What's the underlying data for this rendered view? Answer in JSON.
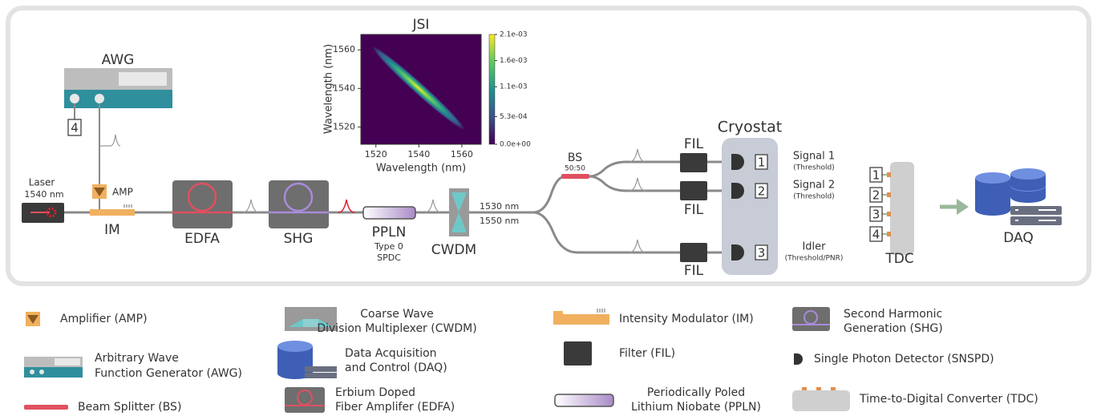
{
  "jsi": {
    "title": "JSI",
    "xlabel": "Wavelength (nm)",
    "ylabel": "Wavelength (nm)",
    "xlim": [
      1513,
      1569
    ],
    "xticks": [
      1520,
      1540,
      1560
    ],
    "ylim": [
      1511,
      1568
    ],
    "yticks": [
      1520,
      1540,
      1560
    ],
    "colorbar": {
      "lim": [
        0,
        0.0021
      ],
      "ticks": [
        {
          "value": 0,
          "label": "0.0e+00"
        },
        {
          "value": 0.00053,
          "label": "5.3e-04"
        },
        {
          "value": 0.0011,
          "label": "1.1e-03"
        },
        {
          "value": 0.0016,
          "label": "1.6e-03"
        },
        {
          "value": 0.0021,
          "label": "2.1e-03"
        }
      ]
    }
  },
  "setup": {
    "awg": "AWG",
    "awg_channel": "4",
    "amp": "AMP",
    "laser": "Laser",
    "laser_wavelength": "1540 nm",
    "im": "IM",
    "edfa": "EDFA",
    "shg": "SHG",
    "ppln": "PPLN",
    "ppln_type": "Type 0",
    "ppln_process": "SPDC",
    "cwdm": "CWDM",
    "cwdm_out1": "1530 nm",
    "cwdm_out2": "1550 nm",
    "bs": "BS",
    "bs_ratio": "50:50",
    "fil": [
      "FIL",
      "FIL",
      "FIL"
    ],
    "cryostat": "Cryostat",
    "detectors": [
      {
        "channel": "1",
        "name": "Signal 1",
        "mode": "(Threshold)"
      },
      {
        "channel": "2",
        "name": "Signal 2",
        "mode": "(Threshold)"
      },
      {
        "channel": "3",
        "name": "Idler",
        "mode": "(Threshold/PNR)"
      }
    ],
    "tdc_inputs": [
      "1",
      "2",
      "3",
      "4"
    ],
    "tdc": "TDC",
    "daq": "DAQ"
  },
  "legend": {
    "amp": [
      "Amplifier (AMP)"
    ],
    "awg": [
      "Arbitrary Wave",
      "Function Generator (AWG)"
    ],
    "bs": [
      "Beam Splitter (BS)"
    ],
    "cwdm": [
      "Coarse Wave",
      "Division Multiplexer (CWDM)"
    ],
    "daq": [
      "Data Acquisition",
      "and Control (DAQ)"
    ],
    "edfa": [
      "Erbium Doped",
      "Fiber Amplifer (EDFA)"
    ],
    "im": [
      "Intensity Modulator (IM)"
    ],
    "fil": [
      "Filter (FIL)"
    ],
    "ppln": [
      "Periodically Poled",
      "Lithium Niobate (PPLN)"
    ],
    "shg": [
      "Second Harmonic",
      "Generation (SHG)"
    ],
    "snspd": [
      "Single Photon Detector (SNSPD)"
    ],
    "tdc": [
      "Time-to-Digital Converter (TDC)"
    ]
  }
}
